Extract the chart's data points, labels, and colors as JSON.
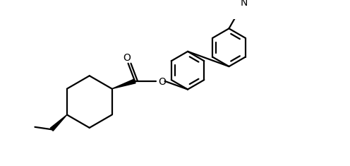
{
  "bg_color": "#ffffff",
  "line_color": "#000000",
  "lw": 1.6,
  "figsize": [
    4.96,
    2.35
  ],
  "dpi": 100,
  "xlim": [
    0.0,
    10.0
  ],
  "ylim": [
    0.0,
    4.8
  ]
}
